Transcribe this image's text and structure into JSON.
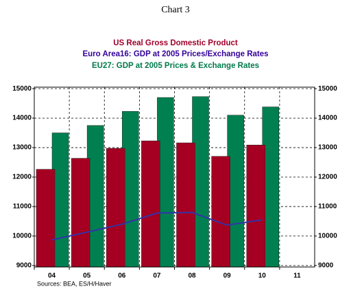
{
  "chart_data": {
    "type": "bar",
    "title": "Chart 3",
    "subtitles": [
      "US Real Gross Domestic Product",
      "Euro Area16: GDP at 2005 Prices/Exchange Rates",
      "EU27: GDP at 2005 Prices & Exchange Rates"
    ],
    "source": "Sources:  BEA, ES/H/Haver",
    "categories": [
      "04",
      "05",
      "06",
      "07",
      "08",
      "09",
      "10",
      "11"
    ],
    "series": [
      {
        "name": "US Real Gross Domestic Product",
        "color": "#a50021",
        "type": "bar",
        "values": [
          12264,
          12638,
          12976,
          13229,
          13162,
          12703,
          13088,
          null
        ]
      },
      {
        "name": "Euro Area16: GDP at 2005 Prices/Exchange Rates",
        "color": "#3333aa",
        "type": "line",
        "values": [
          9870,
          10130,
          10400,
          10780,
          10800,
          10370,
          10550,
          null
        ]
      },
      {
        "name": "EU27: GDP at 2005 Prices & Exchange Rates",
        "color": "#008050",
        "type": "bar",
        "values": [
          13500,
          13750,
          14230,
          14700,
          14730,
          14100,
          14380,
          null
        ]
      }
    ],
    "ylim": [
      8950,
      15050
    ],
    "yticks": [
      9000,
      10000,
      11000,
      12000,
      13000,
      14000,
      15000
    ],
    "grid": true
  }
}
